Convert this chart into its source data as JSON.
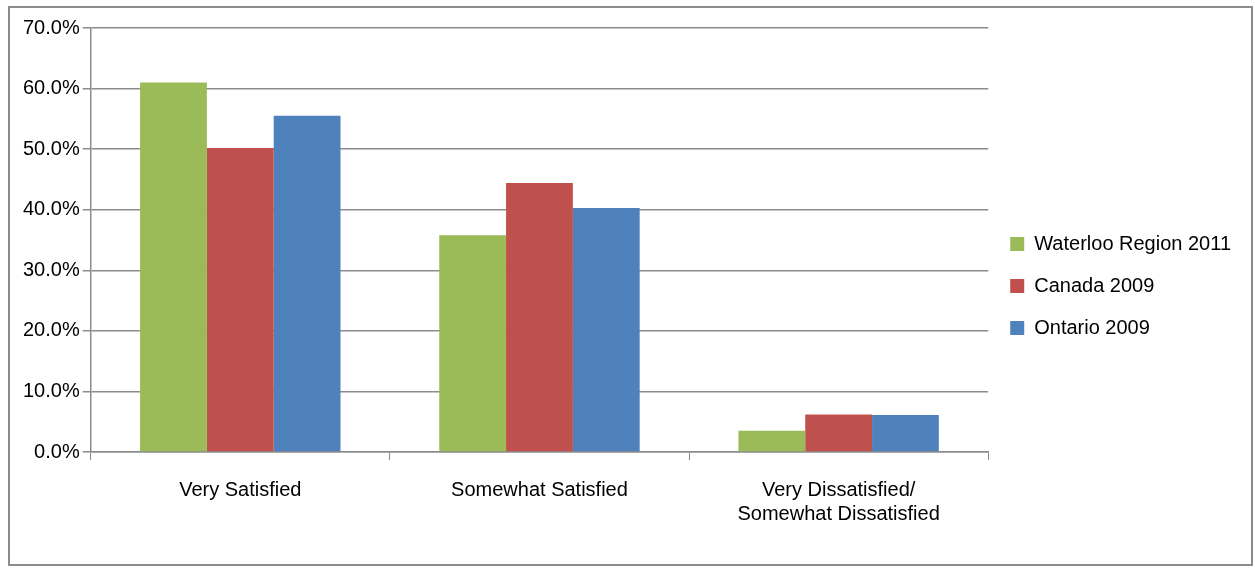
{
  "chart_data": {
    "type": "bar",
    "categories": [
      "Very Satisfied",
      "Somewhat Satisfied",
      "Very Dissatisfied/\nSomewhat Dissatisfied"
    ],
    "series": [
      {
        "name": "Waterloo Region 2011",
        "color": "#9bbb59",
        "values": [
          61.0,
          35.8,
          3.5
        ]
      },
      {
        "name": "Canada 2009",
        "color": "#c0504d",
        "values": [
          50.2,
          44.4,
          6.2
        ]
      },
      {
        "name": "Ontario 2009",
        "color": "#4f81bd",
        "values": [
          55.5,
          40.3,
          6.1
        ]
      }
    ],
    "ylim": [
      0,
      70
    ],
    "yticks": [
      {
        "value": 0,
        "label": "0.0%"
      },
      {
        "value": 10,
        "label": "10.0%"
      },
      {
        "value": 20,
        "label": "20.0%"
      },
      {
        "value": 30,
        "label": "30.0%"
      },
      {
        "value": 40,
        "label": "40.0%"
      },
      {
        "value": 50,
        "label": "50.0%"
      },
      {
        "value": 60,
        "label": "60.0%"
      },
      {
        "value": 70,
        "label": "70.0%"
      }
    ],
    "grid": "y",
    "legend": "right"
  }
}
